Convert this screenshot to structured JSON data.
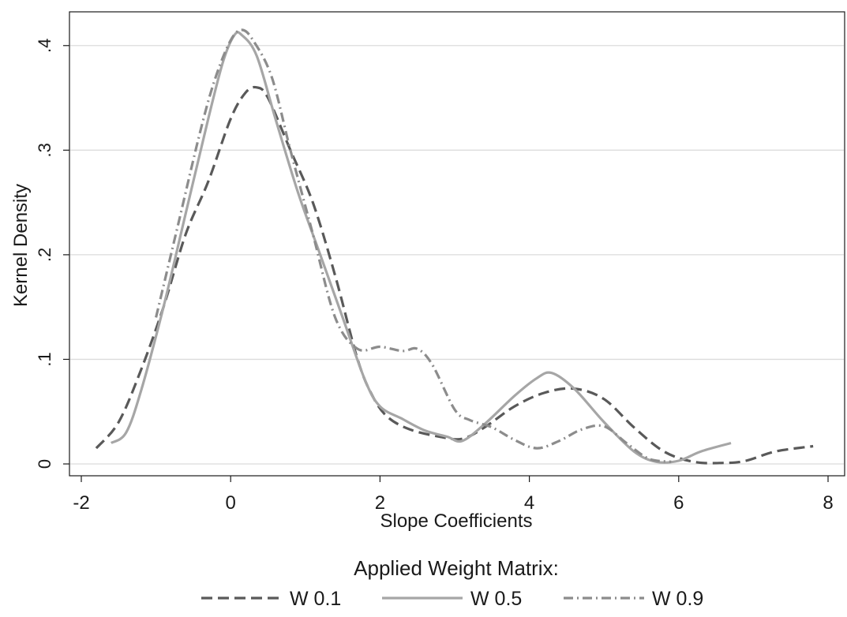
{
  "chart_data": {
    "type": "line",
    "xlabel": "Slope Coefficients",
    "ylabel": "Kernel Density",
    "xlim": [
      -2,
      8
    ],
    "ylim": [
      0,
      0.43
    ],
    "x_ticks": [
      {
        "value": -2,
        "label": "-2"
      },
      {
        "value": 0,
        "label": "0"
      },
      {
        "value": 2,
        "label": "2"
      },
      {
        "value": 4,
        "label": "4"
      },
      {
        "value": 6,
        "label": "6"
      },
      {
        "value": 8,
        "label": "8"
      }
    ],
    "y_ticks": [
      {
        "value": 0,
        "label": "0"
      },
      {
        "value": 0.1,
        "label": ".1"
      },
      {
        "value": 0.2,
        "label": ".2"
      },
      {
        "value": 0.3,
        "label": ".3"
      },
      {
        "value": 0.4,
        "label": ".4"
      }
    ],
    "grid": "horizontal",
    "legend": {
      "title": "Applied Weight Matrix:",
      "position": "bottom"
    },
    "series": [
      {
        "name": "W 0.1",
        "dash": "dashed",
        "color": "#595959",
        "points": [
          [
            -1.8,
            0.015
          ],
          [
            -1.5,
            0.04
          ],
          [
            -1.2,
            0.09
          ],
          [
            -0.9,
            0.15
          ],
          [
            -0.6,
            0.22
          ],
          [
            -0.3,
            0.27
          ],
          [
            0.0,
            0.33
          ],
          [
            0.2,
            0.355
          ],
          [
            0.35,
            0.36
          ],
          [
            0.5,
            0.35
          ],
          [
            0.8,
            0.3
          ],
          [
            1.1,
            0.25
          ],
          [
            1.4,
            0.18
          ],
          [
            1.7,
            0.1
          ],
          [
            1.9,
            0.065
          ],
          [
            2.1,
            0.045
          ],
          [
            2.4,
            0.033
          ],
          [
            2.8,
            0.026
          ],
          [
            3.1,
            0.024
          ],
          [
            3.4,
            0.035
          ],
          [
            3.8,
            0.055
          ],
          [
            4.2,
            0.068
          ],
          [
            4.6,
            0.072
          ],
          [
            5.0,
            0.062
          ],
          [
            5.4,
            0.035
          ],
          [
            5.8,
            0.012
          ],
          [
            6.2,
            0.002
          ],
          [
            6.6,
            0.001
          ],
          [
            6.9,
            0.003
          ],
          [
            7.3,
            0.012
          ],
          [
            7.8,
            0.017
          ]
        ]
      },
      {
        "name": "W 0.5",
        "dash": "solid",
        "color": "#a6a6a6",
        "points": [
          [
            -1.6,
            0.02
          ],
          [
            -1.4,
            0.03
          ],
          [
            -1.2,
            0.07
          ],
          [
            -0.9,
            0.15
          ],
          [
            -0.6,
            0.24
          ],
          [
            -0.3,
            0.33
          ],
          [
            -0.1,
            0.385
          ],
          [
            0.05,
            0.41
          ],
          [
            0.15,
            0.41
          ],
          [
            0.35,
            0.39
          ],
          [
            0.6,
            0.33
          ],
          [
            0.9,
            0.26
          ],
          [
            1.2,
            0.2
          ],
          [
            1.5,
            0.14
          ],
          [
            1.8,
            0.08
          ],
          [
            2.0,
            0.055
          ],
          [
            2.3,
            0.043
          ],
          [
            2.6,
            0.032
          ],
          [
            2.9,
            0.026
          ],
          [
            3.1,
            0.022
          ],
          [
            3.4,
            0.038
          ],
          [
            3.8,
            0.065
          ],
          [
            4.1,
            0.082
          ],
          [
            4.3,
            0.087
          ],
          [
            4.6,
            0.072
          ],
          [
            5.0,
            0.04
          ],
          [
            5.4,
            0.012
          ],
          [
            5.7,
            0.002
          ],
          [
            6.0,
            0.003
          ],
          [
            6.3,
            0.012
          ],
          [
            6.7,
            0.02
          ]
        ]
      },
      {
        "name": "W 0.9",
        "dash": "dash-dot",
        "color": "#8c8c8c",
        "points": [
          [
            -1.0,
            0.14
          ],
          [
            -0.7,
            0.23
          ],
          [
            -0.4,
            0.32
          ],
          [
            -0.2,
            0.37
          ],
          [
            0.0,
            0.405
          ],
          [
            0.15,
            0.415
          ],
          [
            0.3,
            0.405
          ],
          [
            0.55,
            0.37
          ],
          [
            0.8,
            0.3
          ],
          [
            1.1,
            0.22
          ],
          [
            1.4,
            0.14
          ],
          [
            1.7,
            0.11
          ],
          [
            2.0,
            0.112
          ],
          [
            2.3,
            0.108
          ],
          [
            2.5,
            0.11
          ],
          [
            2.7,
            0.095
          ],
          [
            3.0,
            0.052
          ],
          [
            3.2,
            0.042
          ],
          [
            3.5,
            0.035
          ],
          [
            3.8,
            0.023
          ],
          [
            4.1,
            0.015
          ],
          [
            4.4,
            0.022
          ],
          [
            4.7,
            0.033
          ],
          [
            5.0,
            0.036
          ],
          [
            5.3,
            0.02
          ],
          [
            5.6,
            0.005
          ],
          [
            5.9,
            0.002
          ]
        ]
      }
    ]
  }
}
